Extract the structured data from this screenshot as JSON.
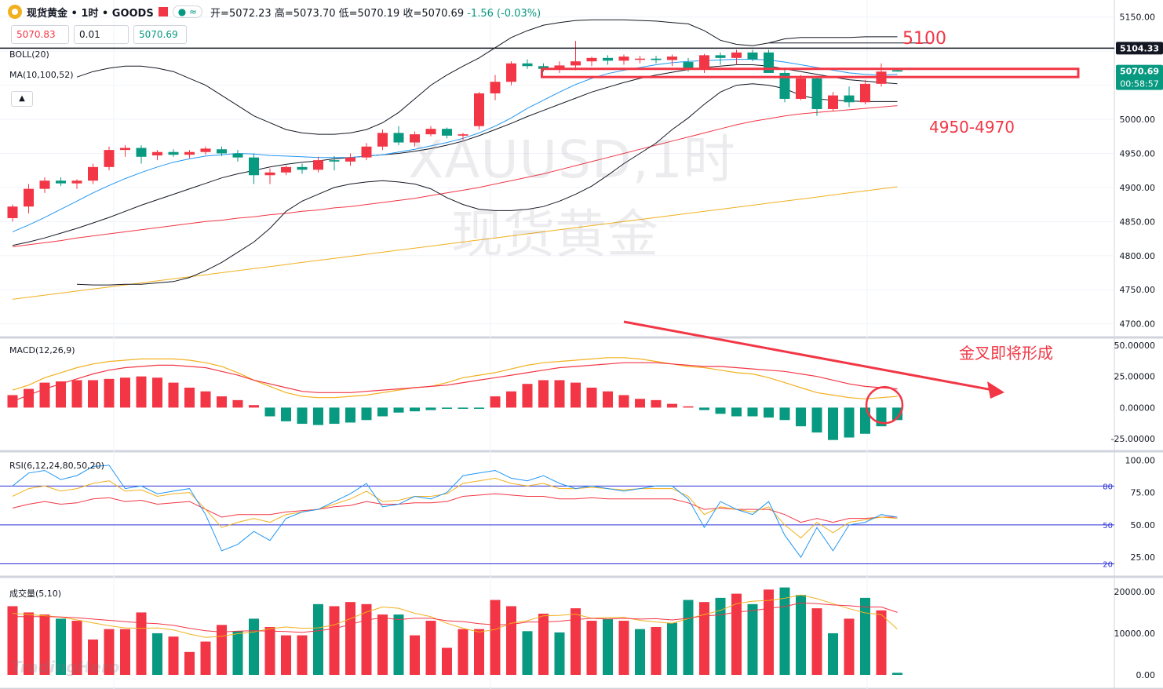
{
  "header": {
    "title": "现货黄金 • 1时 • GOODS",
    "open_label": "开=5072.23",
    "high_label": "高=5073.70",
    "low_label": "低=5070.19",
    "close_label": "收=5070.69",
    "change_label": "-1.56 (-0.03%)",
    "sell_price": "5070.83",
    "quantity": "0.01",
    "buy_price": "5070.69"
  },
  "indicators": {
    "boll": "BOLL(20)",
    "ma": "MA(10,100,52)",
    "macd": "MACD(12,26,9)",
    "rsi": "RSI(6,12,24,80,50,20)",
    "volume": "成交量(5,10)"
  },
  "watermark": {
    "line1": "XAUUSD,1时",
    "line2": "现货黄金",
    "brand": "TradingHero"
  },
  "annotations": {
    "resistance": "5100",
    "support": "4950-4970",
    "macd_note": "金叉即将形成"
  },
  "colors": {
    "up": "#f23645",
    "down": "#089981",
    "boll": "#131722",
    "ma10": "#2196f3",
    "ma100": "#f2b01e",
    "ma52": "#f23645"
  },
  "chart_data": [
    {
      "type": "candlestick",
      "name": "price",
      "ylim": [
        4680,
        5175
      ],
      "y_ticks": [
        5150,
        5100,
        5050,
        5000,
        4950,
        4900,
        4850,
        4800,
        4750,
        4700
      ],
      "y_tick_labels": [
        "5150.00",
        "5100.00",
        "5050.00",
        "5000.00",
        "4950.00",
        "4900.00",
        "4850.00",
        "4800.00",
        "4750.00",
        "4700.00"
      ],
      "price_tags": [
        {
          "label": "5104.33",
          "value": 5104.33,
          "color": "#131722"
        },
        {
          "label": "5070.69",
          "value": 5070.69,
          "color": "#089981",
          "countdown": "00:58:57"
        }
      ],
      "horizontal_line": 5104.33,
      "zone": [
        5062,
        5074
      ],
      "candles": [
        [
          4855,
          4875,
          4850,
          4872
        ],
        [
          4872,
          4905,
          4862,
          4898
        ],
        [
          4898,
          4915,
          4892,
          4910
        ],
        [
          4910,
          4915,
          4902,
          4906
        ],
        [
          4906,
          4912,
          4898,
          4910
        ],
        [
          4910,
          4935,
          4905,
          4930
        ],
        [
          4930,
          4960,
          4925,
          4955
        ],
        [
          4955,
          4962,
          4945,
          4958
        ],
        [
          4958,
          4962,
          4935,
          4945
        ],
        [
          4947,
          4955,
          4940,
          4952
        ],
        [
          4952,
          4956,
          4945,
          4948
        ],
        [
          4948,
          4955,
          4943,
          4952
        ],
        [
          4952,
          4960,
          4948,
          4957
        ],
        [
          4956,
          4960,
          4946,
          4950
        ],
        [
          4950,
          4955,
          4938,
          4944
        ],
        [
          4944,
          4950,
          4905,
          4918
        ],
        [
          4918,
          4928,
          4905,
          4922
        ],
        [
          4922,
          4932,
          4918,
          4930
        ],
        [
          4930,
          4935,
          4920,
          4926
        ],
        [
          4926,
          4945,
          4922,
          4940
        ],
        [
          4940,
          4946,
          4925,
          4938
        ],
        [
          4938,
          4950,
          4932,
          4944
        ],
        [
          4944,
          4965,
          4940,
          4960
        ],
        [
          4960,
          4985,
          4955,
          4980
        ],
        [
          4980,
          4990,
          4962,
          4966
        ],
        [
          4966,
          4982,
          4960,
          4978
        ],
        [
          4978,
          4990,
          4975,
          4986
        ],
        [
          4986,
          4988,
          4972,
          4976
        ],
        [
          4976,
          4980,
          4970,
          4978
        ],
        [
          4990,
          5040,
          4985,
          5038
        ],
        [
          5038,
          5065,
          5028,
          5055
        ],
        [
          5055,
          5085,
          5050,
          5082
        ],
        [
          5082,
          5088,
          5074,
          5078
        ],
        [
          5078,
          5082,
          5070,
          5074
        ],
        [
          5074,
          5085,
          5068,
          5079
        ],
        [
          5079,
          5115,
          5072,
          5085
        ],
        [
          5085,
          5092,
          5078,
          5090
        ],
        [
          5090,
          5094,
          5080,
          5086
        ],
        [
          5086,
          5095,
          5080,
          5092
        ],
        [
          5088,
          5093,
          5082,
          5089
        ],
        [
          5089,
          5093,
          5082,
          5087
        ],
        [
          5087,
          5095,
          5078,
          5092
        ],
        [
          5084,
          5090,
          5070,
          5075
        ],
        [
          5075,
          5096,
          5068,
          5094
        ],
        [
          5094,
          5098,
          5080,
          5090
        ],
        [
          5090,
          5102,
          5080,
          5098
        ],
        [
          5098,
          5102,
          5085,
          5088
        ],
        [
          5098,
          5102,
          5072,
          5068
        ],
        [
          5068,
          5076,
          5025,
          5030
        ],
        [
          5030,
          5065,
          5028,
          5060
        ],
        [
          5060,
          5062,
          5005,
          5015
        ],
        [
          5015,
          5040,
          5012,
          5035
        ],
        [
          5035,
          5048,
          5018,
          5025
        ],
        [
          5025,
          5058,
          5022,
          5052
        ],
        [
          5052,
          5082,
          5048,
          5070
        ],
        [
          5072,
          5074,
          5070,
          5070
        ]
      ],
      "boll_upper": [
        null,
        null,
        null,
        null,
        5062,
        5070,
        5075,
        5078,
        5078,
        5075,
        5070,
        5060,
        5050,
        5035,
        5020,
        5005,
        4995,
        4985,
        4980,
        4978,
        4978,
        4980,
        4985,
        4995,
        5010,
        5030,
        5050,
        5065,
        5078,
        5090,
        5105,
        5120,
        5130,
        5138,
        5142,
        5145,
        5146,
        5146,
        5146,
        5145,
        5144,
        5142,
        5140,
        5130,
        5116,
        5110,
        5108,
        5112,
        5118,
        5120,
        5120,
        5120,
        5120,
        5121,
        5121,
        5121
      ],
      "boll_mid": [
        4815,
        4820,
        4826,
        4833,
        4840,
        4848,
        4856,
        4865,
        4874,
        4882,
        4890,
        4898,
        4906,
        4914,
        4920,
        4925,
        4930,
        4934,
        4937,
        4939,
        4942,
        4944,
        4946,
        4948,
        4950,
        4953,
        4957,
        4962,
        4968,
        4976,
        4985,
        4994,
        5004,
        5013,
        5022,
        5031,
        5040,
        5047,
        5054,
        5060,
        5065,
        5069,
        5073,
        5076,
        5078,
        5080,
        5080,
        5078,
        5074,
        5070,
        5066,
        5062,
        5058,
        5056,
        5054,
        5052
      ],
      "boll_lower": [
        null,
        null,
        null,
        null,
        4758,
        4757,
        4757,
        4758,
        4758,
        4760,
        4762,
        4768,
        4778,
        4790,
        4805,
        4820,
        4840,
        4865,
        4880,
        4890,
        4900,
        4905,
        4908,
        4910,
        4908,
        4905,
        4898,
        4885,
        4875,
        4868,
        4866,
        4866,
        4868,
        4872,
        4880,
        4890,
        4902,
        4918,
        4935,
        4950,
        4965,
        4985,
        5002,
        5022,
        5040,
        5050,
        5052,
        5050,
        5045,
        5035,
        5030,
        5028,
        5027,
        5026,
        5026,
        5026
      ],
      "ma10": [
        4835,
        4845,
        4856,
        4868,
        4880,
        4892,
        4903,
        4913,
        4922,
        4930,
        4937,
        4942,
        4946,
        4948,
        4950,
        4949,
        4947,
        4946,
        4945,
        4944,
        4944,
        4944,
        4946,
        4948,
        4952,
        4956,
        4961,
        4966,
        4972,
        4980,
        4990,
        5002,
        5016,
        5028,
        5040,
        5051,
        5060,
        5067,
        5072,
        5076,
        5080,
        5083,
        5085,
        5086,
        5087,
        5088,
        5088,
        5087,
        5084,
        5080,
        5076,
        5072,
        5068,
        5066,
        5065,
        5066
      ],
      "ma52": [
        4813,
        4816,
        4819,
        4822,
        4826,
        4829,
        4832,
        4835,
        4838,
        4841,
        4844,
        4847,
        4850,
        4852,
        4855,
        4857,
        4860,
        4862,
        4865,
        4867,
        4870,
        4872,
        4875,
        4878,
        4881,
        4884,
        4888,
        4892,
        4896,
        4900,
        4905,
        4910,
        4915,
        4920,
        4926,
        4932,
        4938,
        4944,
        4950,
        4956,
        4962,
        4968,
        4974,
        4980,
        4986,
        4992,
        4997,
        5001,
        5005,
        5008,
        5010,
        5012,
        5014,
        5016,
        5018,
        5020
      ],
      "ma100": [
        4736,
        4739,
        4742,
        4745,
        4748,
        4751,
        4754,
        4757,
        4760,
        4763,
        4766,
        4769,
        4772,
        4775,
        4778,
        4781,
        4784,
        4787,
        4790,
        4793,
        4796,
        4799,
        4802,
        4805,
        4808,
        4811,
        4814,
        4817,
        4820,
        4823,
        4826,
        4829,
        4832,
        4835,
        4838,
        4841,
        4844,
        4847,
        4850,
        4853,
        4856,
        4859,
        4862,
        4865,
        4868,
        4871,
        4874,
        4877,
        4880,
        4883,
        4886,
        4889,
        4892,
        4895,
        4898,
        4901
      ]
    },
    {
      "type": "bar",
      "name": "MACD",
      "ylim": [
        -35,
        55
      ],
      "y_ticks": [
        50,
        25,
        0,
        -25
      ],
      "y_tick_labels": [
        "50.00000",
        "25.00000",
        "0.00000",
        "-25.00000"
      ],
      "histogram": [
        10,
        15,
        20,
        21,
        22,
        22,
        23,
        24,
        25,
        24,
        20,
        16,
        13,
        9,
        6,
        2,
        -7,
        -11,
        -13,
        -14,
        -13,
        -12,
        -10,
        -7,
        -4,
        -3,
        -2,
        -1,
        -1,
        -1,
        9,
        13,
        19,
        22,
        22,
        20,
        16,
        13,
        10,
        7,
        6,
        3,
        1,
        -2,
        -5,
        -7,
        -7,
        -8,
        -10,
        -15,
        -20,
        -26,
        -24,
        -21,
        -15,
        -10
      ],
      "dif": [
        14,
        18,
        24,
        28,
        32,
        35,
        37,
        38,
        39,
        39,
        39,
        38,
        36,
        33,
        28,
        22,
        17,
        12,
        9,
        8,
        8,
        9,
        10,
        12,
        14,
        16,
        17,
        20,
        24,
        26,
        28,
        31,
        34,
        36,
        37,
        38,
        39,
        40,
        40,
        39,
        37,
        35,
        33,
        32,
        30,
        28,
        27,
        24,
        20,
        16,
        12,
        10,
        8,
        7,
        8,
        9
      ],
      "dea": [
        5,
        10,
        15,
        19,
        23,
        27,
        30,
        32,
        33,
        34,
        34,
        33,
        32,
        29,
        26,
        22,
        19,
        16,
        13,
        12,
        12,
        12,
        13,
        14,
        15,
        16,
        17,
        18,
        20,
        22,
        24,
        26,
        28,
        30,
        32,
        33,
        34,
        35,
        36,
        36,
        36,
        35,
        34,
        33,
        33,
        32,
        31,
        30,
        29,
        27,
        25,
        22,
        19,
        17,
        16,
        15
      ]
    },
    {
      "type": "line",
      "name": "RSI",
      "ylim": [
        10,
        105
      ],
      "y_ticks": [
        100,
        75,
        50,
        25
      ],
      "y_tick_labels": [
        "100.00",
        "75.00",
        "50.00",
        "25.00"
      ],
      "levels": [
        {
          "value": 80,
          "label": "80"
        },
        {
          "value": 50,
          "label": "50"
        },
        {
          "value": 20,
          "label": "20"
        }
      ],
      "rsi6": [
        80,
        90,
        92,
        85,
        88,
        95,
        96,
        78,
        80,
        74,
        76,
        78,
        58,
        30,
        35,
        45,
        38,
        55,
        60,
        62,
        68,
        74,
        82,
        64,
        66,
        72,
        70,
        75,
        88,
        90,
        92,
        86,
        84,
        88,
        82,
        78,
        80,
        78,
        76,
        78,
        80,
        80,
        70,
        48,
        68,
        62,
        58,
        68,
        42,
        25,
        48,
        30,
        50,
        52,
        58,
        56
      ],
      "rsi12": [
        72,
        78,
        80,
        76,
        78,
        82,
        84,
        76,
        77,
        72,
        74,
        75,
        62,
        48,
        52,
        55,
        52,
        58,
        60,
        62,
        66,
        70,
        76,
        68,
        69,
        72,
        72,
        74,
        82,
        84,
        86,
        82,
        80,
        82,
        78,
        78,
        79,
        78,
        77,
        78,
        78,
        78,
        72,
        58,
        64,
        62,
        60,
        64,
        50,
        40,
        52,
        44,
        52,
        54,
        56,
        55
      ],
      "rsi24": [
        63,
        66,
        68,
        66,
        67,
        70,
        71,
        68,
        69,
        66,
        67,
        68,
        62,
        56,
        58,
        58,
        58,
        60,
        61,
        62,
        64,
        65,
        68,
        66,
        66,
        67,
        67,
        68,
        72,
        73,
        74,
        73,
        72,
        72,
        70,
        70,
        71,
        70,
        70,
        70,
        70,
        70,
        67,
        62,
        63,
        62,
        62,
        62,
        58,
        52,
        55,
        52,
        55,
        55,
        56,
        56
      ]
    },
    {
      "type": "bar",
      "name": "volume",
      "ylim": [
        0,
        23000
      ],
      "y_ticks": [
        20000,
        10000,
        0
      ],
      "y_tick_labels": [
        "20000.00",
        "10000.00",
        "0.00"
      ],
      "volumes": [
        16500,
        15000,
        14500,
        13500,
        13000,
        8500,
        11000,
        11000,
        15000,
        10000,
        9200,
        5500,
        8000,
        12000,
        10500,
        13500,
        11500,
        9500,
        9500,
        17000,
        16500,
        17500,
        17000,
        14500,
        14500,
        9500,
        13000,
        6500,
        11000,
        11000,
        18000,
        16500,
        10500,
        14700,
        10200,
        16000,
        13000,
        13500,
        13000,
        11000,
        11500,
        12500,
        18000,
        17500,
        18500,
        19500,
        17000,
        20500,
        21000,
        19200,
        16000,
        10000,
        13500,
        18500,
        15500,
        500
      ],
      "vol_up": [
        true,
        true,
        true,
        false,
        true,
        true,
        true,
        true,
        true,
        false,
        true,
        true,
        true,
        true,
        false,
        false,
        true,
        true,
        true,
        false,
        true,
        true,
        true,
        true,
        false,
        true,
        true,
        true,
        true,
        true,
        true,
        true,
        false,
        true,
        false,
        true,
        true,
        false,
        true,
        false,
        true,
        false,
        false,
        true,
        false,
        true,
        false,
        true,
        false,
        false,
        true,
        false,
        true,
        false,
        true,
        false
      ],
      "ma5": [
        14800,
        14500,
        14200,
        13900,
        13200,
        12500,
        11800,
        11300,
        11200,
        11300,
        10800,
        9800,
        9000,
        9300,
        9900,
        10300,
        11100,
        11500,
        11200,
        11300,
        12000,
        13500,
        15100,
        16300,
        16000,
        14800,
        14000,
        12400,
        11200,
        10300,
        10900,
        12400,
        13000,
        14200,
        14300,
        14600,
        13600,
        13800,
        13800,
        13100,
        12700,
        12400,
        13500,
        14500,
        15500,
        17100,
        17700,
        17900,
        18400,
        19200,
        18300,
        17100,
        15900,
        14900,
        14500,
        11000
      ],
      "ma10": [
        14000,
        14000,
        14000,
        13900,
        13700,
        13400,
        13100,
        12800,
        12500,
        12300,
        11900,
        11200,
        10600,
        10300,
        10500,
        10600,
        10500,
        10400,
        10200,
        10600,
        11100,
        12100,
        13200,
        13700,
        13300,
        13600,
        13600,
        13000,
        12800,
        12300,
        12000,
        12100,
        12700,
        12700,
        12900,
        13300,
        13600,
        13400,
        13600,
        13400,
        13500,
        13200,
        13600,
        14200,
        14400,
        15100,
        15400,
        16000,
        16400,
        17300,
        17100,
        16800,
        16600,
        16300,
        16300,
        15000
      ]
    }
  ]
}
